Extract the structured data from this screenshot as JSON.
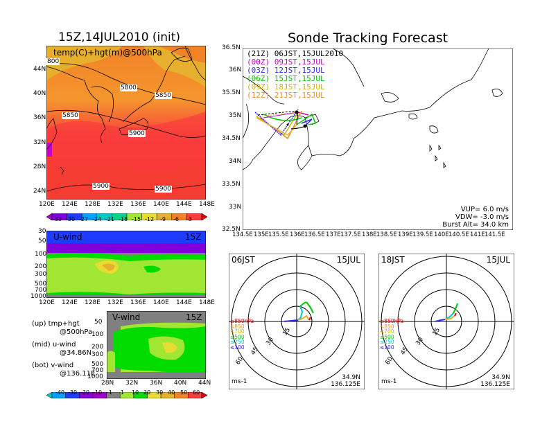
{
  "left": {
    "init_title": "15Z,14JUL2010 (init)",
    "map_label": "temp(C)+hgt(m)@500hPa",
    "contour_labels": [
      "5800",
      "5800",
      "5850",
      "5850",
      "5900",
      "5900",
      "5900"
    ],
    "contour_cut_label": "800",
    "lat_ticks": [
      "44N",
      "40N",
      "36N",
      "32N",
      "28N",
      "24N"
    ],
    "lon_ticks": [
      "120E",
      "124E",
      "128E",
      "132E",
      "136E",
      "140E",
      "144E",
      "148E"
    ],
    "temp_colorbar": [
      "-33",
      "-30",
      "-27",
      "-24",
      "-21",
      "-18",
      "-15",
      "-12",
      "-9",
      "-6",
      "-3"
    ],
    "temp_colors": [
      "#a000c8",
      "#8200dc",
      "#1e3cff",
      "#00a0ff",
      "#00c8c8",
      "#00d28c",
      "#a0e632",
      "#e6dc32",
      "#e6af2d",
      "#f08228",
      "#fa3c3c",
      "#e60000"
    ],
    "uwind": {
      "label": "U-wind",
      "time": "15Z",
      "p_ticks": [
        "30",
        "50",
        "100",
        "200",
        "300",
        "500",
        "700",
        "1000"
      ],
      "lon_ticks": [
        "120E",
        "124E",
        "128E",
        "132E",
        "136E",
        "140E",
        "144E",
        "148E"
      ]
    },
    "vwind": {
      "label": "V-wind",
      "time": "15Z",
      "lat_ticks": [
        "28N",
        "32N",
        "36N",
        "40N",
        "44N"
      ],
      "p_ticks": [
        "50",
        "100",
        "200",
        "300",
        "500",
        "700",
        "1000"
      ]
    },
    "legend": {
      "up": "(up) tmp+hgt",
      "up2": "@500hPa",
      "mid": "(mid) u-wind",
      "mid2": "@34.86N",
      "bot": "(bot) v-wind",
      "bot2": "@136.11E"
    },
    "wind_colorbar": [
      "-40",
      "-30",
      "-20",
      "-10",
      "-1",
      "1",
      "10",
      "20",
      "30",
      "40",
      "50",
      "60"
    ],
    "wind_colors": [
      "#00c8c8",
      "#00a0ff",
      "#1e3cff",
      "#8200dc",
      "#a000c8",
      "#808080",
      "#a0e632",
      "#00dc00",
      "#e6dc32",
      "#e6af2d",
      "#f08228",
      "#fa3c3c",
      "#e60000"
    ]
  },
  "right": {
    "title": "Sonde Tracking Forecast",
    "launches": [
      {
        "text": "(21Z)  06JST,15JUL2010",
        "color": "#000000"
      },
      {
        "text": "(00Z)  09JST,15JUL",
        "color": "#c800c8"
      },
      {
        "text": "(03Z)  12JST,15JUL",
        "color": "#2828ff"
      },
      {
        "text": "(06Z)  15JST,15JUL",
        "color": "#00c800"
      },
      {
        "text": "(09Z)  18JST,15JUL",
        "color": "#d2b400"
      },
      {
        "text": "(12Z)  21JST,15JUL",
        "color": "#f08c28"
      }
    ],
    "lat_ticks": [
      "36.5N",
      "36N",
      "35.5N",
      "35N",
      "34.5N",
      "34N",
      "33.5N",
      "33N",
      "32.5N"
    ],
    "lon_ticks": [
      "134.5E",
      "135E",
      "135.5E",
      "136E",
      "136.5E",
      "137E",
      "137.5E",
      "138E",
      "138.5E",
      "139E",
      "139.5E",
      "140E",
      "140.5E",
      "141E",
      "141.5E"
    ],
    "params": [
      "VUP=  6.0  m/s",
      "VDW=  -3.0  m/s",
      "Burst Alt=  34.0  km"
    ],
    "hodo_left": {
      "time": "06JST",
      "date": "15JUL"
    },
    "hodo_right": {
      "time": "18JST",
      "date": "15JUL"
    },
    "hodo_rings": [
      "15",
      "30",
      "45",
      "60"
    ],
    "hodo_levels": [
      {
        "text": "≥850hPa",
        "color": "#e60000"
      },
      {
        "text": "≤850",
        "color": "#f08c28"
      },
      {
        "text": "≤700",
        "color": "#d2b400"
      },
      {
        "text": "≤500",
        "color": "#00c800"
      },
      {
        "text": "≤250",
        "color": "#00c8c8"
      },
      {
        "text": "≤100",
        "color": "#2828ff"
      }
    ],
    "hodo_unit": "ms-1",
    "hodo_lat": "34.9N",
    "hodo_lon": "136.125E"
  }
}
